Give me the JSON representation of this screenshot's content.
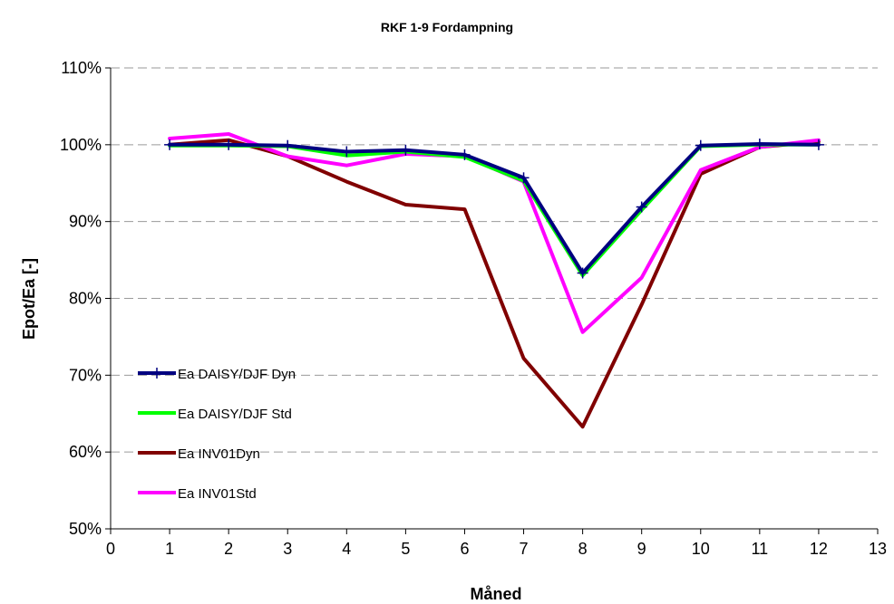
{
  "chart_data": {
    "type": "line",
    "title": "RKF 1-9 Fordampning",
    "xlabel": "Måned",
    "ylabel": "Epot/Ea [-]",
    "xlim": [
      0,
      13
    ],
    "ylim": [
      0.5,
      1.1
    ],
    "x_ticks": [
      "0",
      "1",
      "2",
      "3",
      "4",
      "5",
      "6",
      "7",
      "8",
      "9",
      "10",
      "11",
      "12",
      "13"
    ],
    "y_ticks": [
      "50%",
      "60%",
      "70%",
      "80%",
      "90%",
      "100%",
      "110%"
    ],
    "y_tick_values": [
      0.5,
      0.6,
      0.7,
      0.8,
      0.9,
      1.0,
      1.1
    ],
    "grid": "horizontal dashed",
    "legend_position": "bottom-left inside plot",
    "x": [
      1,
      2,
      3,
      4,
      5,
      6,
      7,
      8,
      9,
      10,
      11,
      12
    ],
    "series": [
      {
        "name": "Ea INV01Dyn",
        "color": "#800000",
        "marker": "none",
        "values": [
          1.0,
          1.006,
          0.985,
          0.952,
          0.922,
          0.916,
          0.722,
          0.633,
          0.792,
          0.962,
          0.997,
          1.004
        ]
      },
      {
        "name": "Ea INV01Std",
        "color": "#ff00ff",
        "marker": "none",
        "values": [
          1.008,
          1.014,
          0.985,
          0.973,
          0.988,
          0.985,
          0.952,
          0.756,
          0.827,
          0.967,
          0.997,
          1.006
        ]
      },
      {
        "name": "Ea DAISY/DJF Std",
        "color": "#00ff00",
        "marker": "none",
        "values": [
          0.999,
          0.999,
          0.998,
          0.986,
          0.991,
          0.984,
          0.953,
          0.83,
          0.915,
          0.998,
          1.0,
          1.0
        ]
      },
      {
        "name": "Ea DAISY/DJF Dyn",
        "color": "#000080",
        "marker": "plus",
        "values": [
          1.0,
          1.0,
          0.999,
          0.991,
          0.993,
          0.987,
          0.957,
          0.833,
          0.919,
          0.999,
          1.001,
          1.0
        ]
      }
    ],
    "legend_order": [
      "Ea DAISY/DJF Dyn",
      "Ea DAISY/DJF Std",
      "Ea INV01Dyn",
      "Ea INV01Std"
    ]
  }
}
